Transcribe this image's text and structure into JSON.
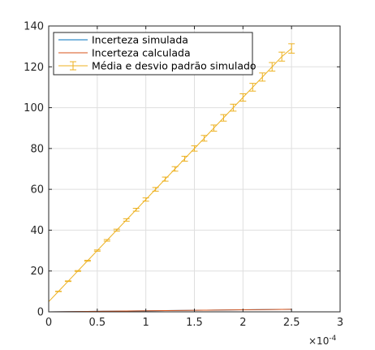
{
  "chart_data": {
    "type": "line",
    "title": "",
    "xlabel": "",
    "ylabel": "",
    "xlim": [
      0,
      0.0003
    ],
    "ylim": [
      0,
      140
    ],
    "x_scale_exponent": "×10^-4",
    "x_scale_base": "×10",
    "x_scale_power": "-4",
    "x_tick_labels": [
      "0",
      "0.5",
      "1",
      "1.5",
      "2",
      "2.5",
      "3"
    ],
    "x_ticks": [
      0,
      5e-05,
      0.0001,
      0.00015,
      0.0002,
      0.00025,
      0.0003
    ],
    "y_tick_labels": [
      "0",
      "20",
      "40",
      "60",
      "80",
      "100",
      "120",
      "140"
    ],
    "y_ticks": [
      0,
      20,
      40,
      60,
      80,
      100,
      120,
      140
    ],
    "grid": true,
    "legend_position": "top-left",
    "x": [
      0,
      1e-05,
      2e-05,
      3e-05,
      4e-05,
      5e-05,
      6e-05,
      7e-05,
      8e-05,
      9e-05,
      0.0001,
      0.00011,
      0.00012,
      0.00013,
      0.00014,
      0.00015,
      0.00016,
      0.00017,
      0.00018,
      0.00019,
      0.0002,
      0.00021,
      0.00022,
      0.00023,
      0.00024,
      0.00025
    ],
    "series": [
      {
        "name": "Incerteza simulada",
        "color": "#0072BD",
        "values": [
          0,
          0.05,
          0.1,
          0.15,
          0.2,
          0.25,
          0.3,
          0.35,
          0.4,
          0.45,
          0.5,
          0.55,
          0.6,
          0.65,
          0.7,
          0.75,
          0.8,
          0.85,
          0.9,
          0.95,
          1.0,
          1.05,
          1.1,
          1.15,
          1.2,
          1.25
        ]
      },
      {
        "name": "Incerteza calculada",
        "color": "#D95319",
        "values": [
          0,
          0.05,
          0.1,
          0.15,
          0.2,
          0.25,
          0.3,
          0.35,
          0.4,
          0.45,
          0.5,
          0.55,
          0.6,
          0.65,
          0.7,
          0.75,
          0.8,
          0.85,
          0.9,
          0.95,
          1.0,
          1.05,
          1.1,
          1.15,
          1.2,
          1.25
        ]
      },
      {
        "name": "Média e desvio padrão simulado",
        "color": "#EDB120",
        "values": [
          5,
          10,
          15,
          20,
          25,
          30,
          35,
          40,
          45,
          50,
          55,
          60,
          65,
          70,
          75,
          80,
          85,
          90,
          95,
          100,
          105,
          110,
          115,
          120,
          125,
          129
        ],
        "errors": [
          0,
          0.1,
          0.15,
          0.2,
          0.25,
          0.3,
          0.4,
          0.5,
          0.6,
          0.7,
          0.8,
          0.9,
          1.0,
          1.1,
          1.2,
          1.3,
          1.4,
          1.5,
          1.6,
          1.7,
          1.8,
          1.9,
          2.0,
          2.1,
          2.2,
          2.3
        ]
      }
    ]
  }
}
